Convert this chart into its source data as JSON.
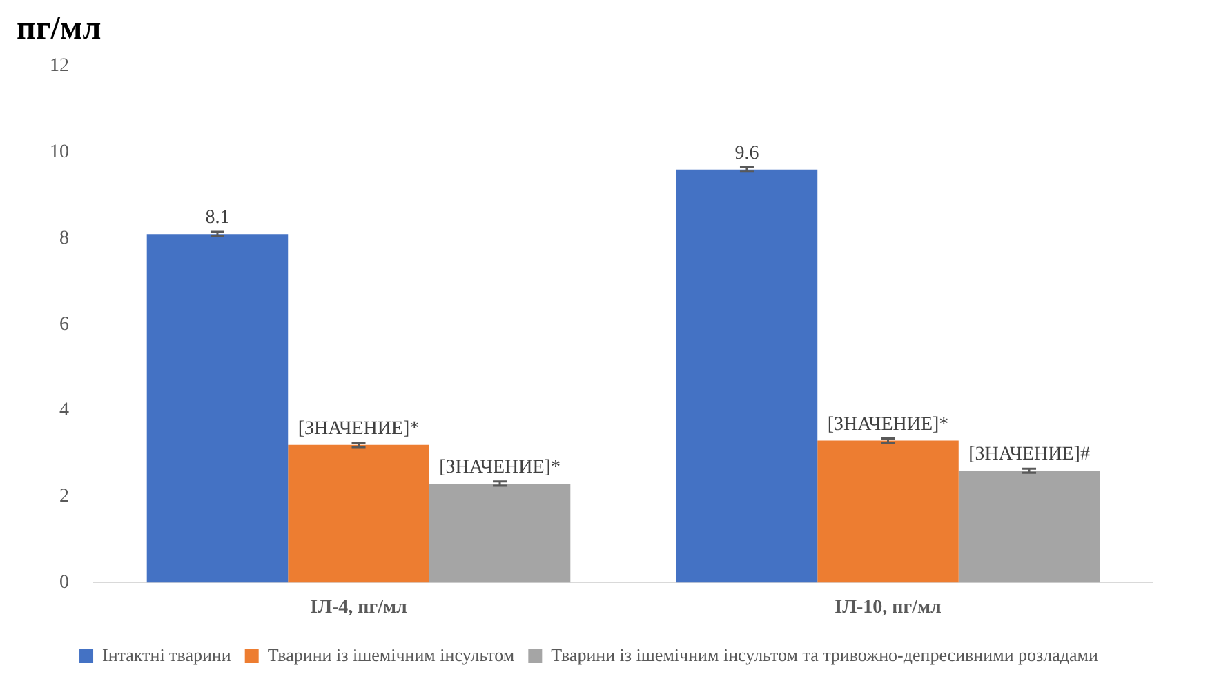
{
  "chart_data": {
    "type": "bar",
    "ylabel": "пг/мл",
    "categories": [
      "ІЛ-4, пг/мл",
      "ІЛ-10, пг/мл"
    ],
    "series": [
      {
        "name": "Інтактні тварини",
        "color": "#4472c4",
        "values": [
          8.1,
          9.6
        ],
        "errors": [
          0.05,
          0.05
        ],
        "value_labels": [
          "8.1",
          "9.6"
        ]
      },
      {
        "name": "Тварини із ішемічним інсультом",
        "color": "#ed7d31",
        "values": [
          3.2,
          3.3
        ],
        "errors": [
          0.05,
          0.05
        ],
        "value_labels": [
          "[ЗНАЧЕНИЕ]*",
          "[ЗНАЧЕНИЕ]*"
        ]
      },
      {
        "name": "Тварини із ішемічним інсультом та тривожно-депресивними розладами",
        "color": "#a5a5a5",
        "values": [
          2.3,
          2.6
        ],
        "errors": [
          0.05,
          0.05
        ],
        "value_labels": [
          "[ЗНАЧЕНИЕ]*",
          "[ЗНАЧЕНИЕ]#"
        ]
      }
    ],
    "ylim": [
      0,
      12
    ],
    "yticks": [
      0,
      2,
      4,
      6,
      8,
      10,
      12
    ],
    "grid": false,
    "legend": "bottom"
  }
}
